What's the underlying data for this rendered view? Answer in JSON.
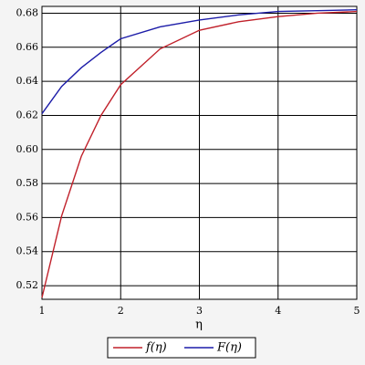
{
  "chart_data": {
    "type": "line",
    "x": [
      1,
      1.25,
      1.5,
      1.75,
      2,
      2.5,
      3,
      3.5,
      4,
      4.5,
      5
    ],
    "series": [
      {
        "name": "f(η)",
        "color": "#c0202a",
        "values": [
          0.513,
          0.561,
          0.596,
          0.62,
          0.638,
          0.659,
          0.67,
          0.675,
          0.678,
          0.68,
          0.681
        ]
      },
      {
        "name": "F(η)",
        "color": "#1c1ca8",
        "values": [
          0.621,
          0.637,
          0.648,
          0.657,
          0.665,
          0.672,
          0.676,
          0.679,
          0.681,
          0.6815,
          0.682
        ]
      }
    ],
    "x_label": "η",
    "xlim": [
      1,
      5
    ],
    "xticks": [
      1,
      2,
      3,
      4,
      5
    ],
    "ylim": [
      0.512,
      0.684
    ],
    "yticks": [
      0.52,
      0.54,
      0.56,
      0.58,
      {
        "value": 0.6,
        "label": "0.60"
      },
      0.62,
      0.64,
      0.66,
      0.68
    ],
    "grid": true,
    "legend": "bottom"
  }
}
